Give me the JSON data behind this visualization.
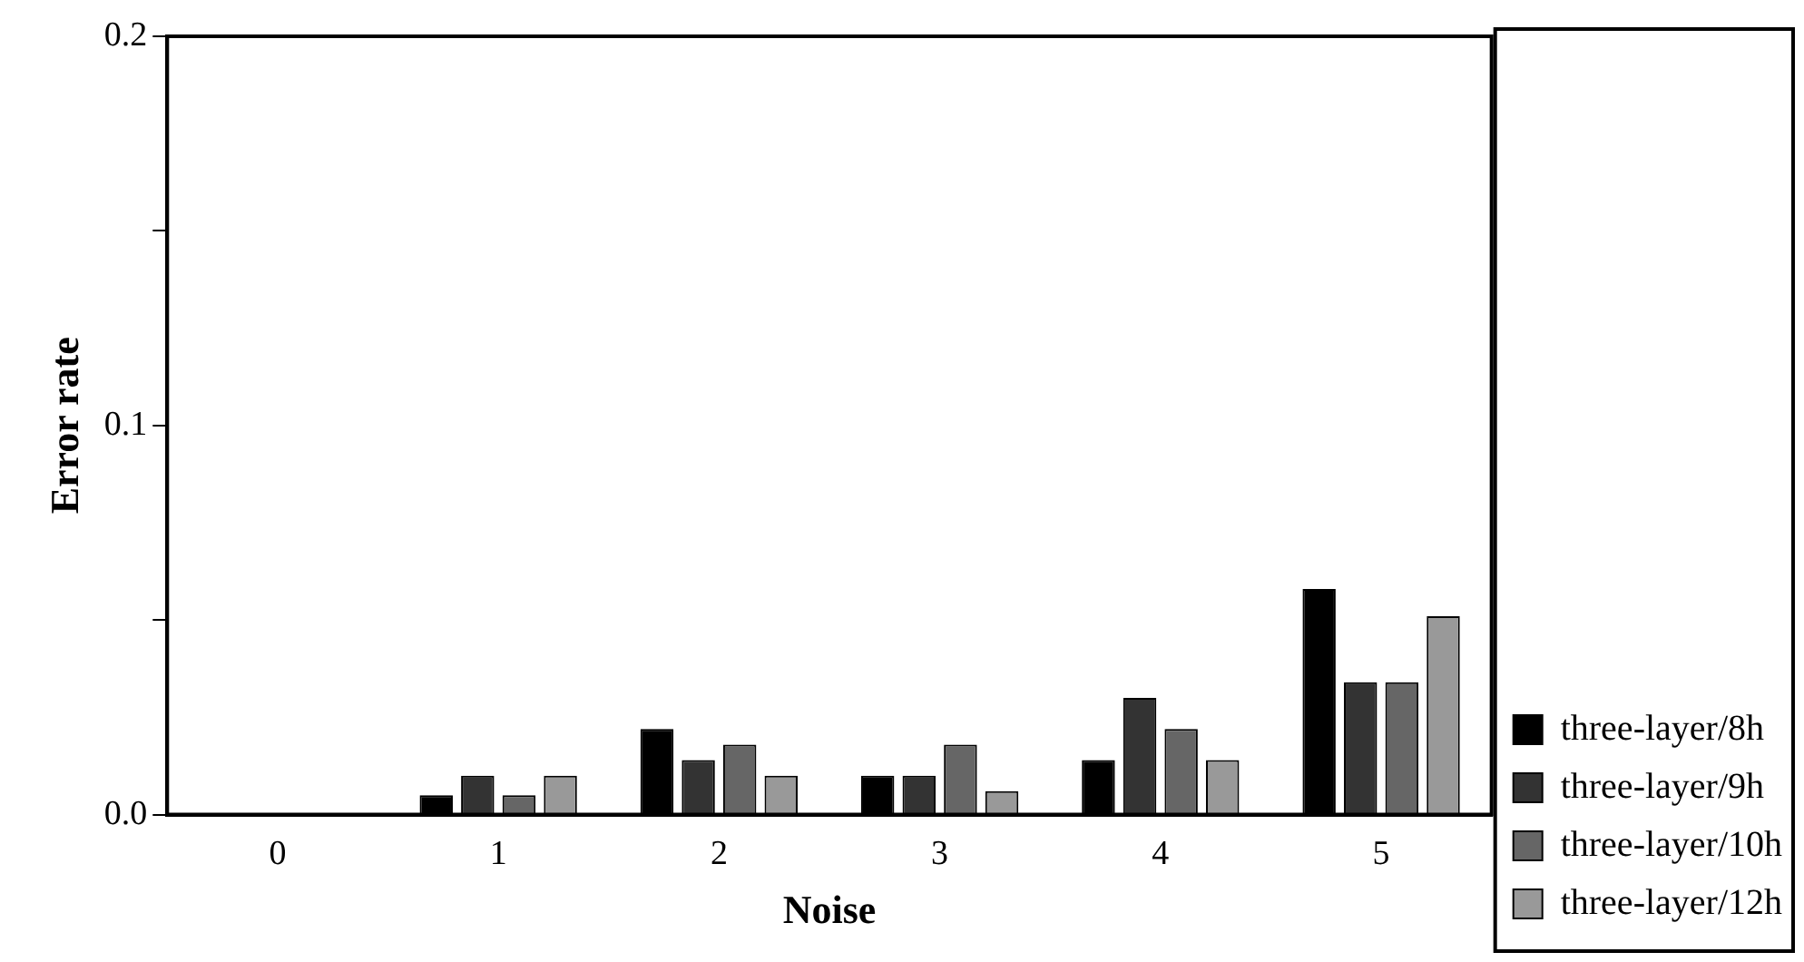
{
  "chart_data": {
    "type": "bar",
    "xlabel": "Noise",
    "ylabel": "Error rate",
    "categories": [
      "0",
      "1",
      "2",
      "3",
      "4",
      "5"
    ],
    "series": [
      {
        "name": "three-layer/8h",
        "color": "#000000",
        "values": [
          0,
          0.005,
          0.022,
          0.01,
          0.014,
          0.058
        ]
      },
      {
        "name": "three-layer/9h",
        "color": "#333333",
        "values": [
          0,
          0.01,
          0.014,
          0.01,
          0.03,
          0.034
        ]
      },
      {
        "name": "three-layer/10h",
        "color": "#666666",
        "values": [
          0,
          0.005,
          0.018,
          0.018,
          0.022,
          0.034
        ]
      },
      {
        "name": "three-layer/12h",
        "color": "#999999",
        "values": [
          0,
          0.01,
          0.01,
          0.006,
          0.014,
          0.051
        ]
      }
    ],
    "ylim": [
      0,
      0.2
    ],
    "yticks": [
      {
        "value": 0,
        "label": "0.0"
      },
      {
        "value": 0.05,
        "label": null
      },
      {
        "value": 0.1,
        "label": "0.1"
      },
      {
        "value": 0.15,
        "label": null
      },
      {
        "value": 0.2,
        "label": "0.2"
      }
    ],
    "grid": false,
    "legend": "right"
  }
}
